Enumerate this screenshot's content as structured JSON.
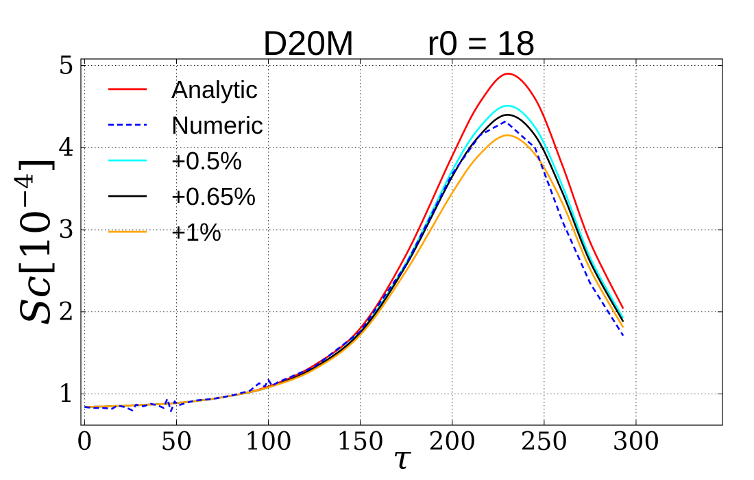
{
  "chart_data": {
    "type": "line",
    "title_left": "D20M",
    "title_right": "r0 = 18",
    "xlabel": "τ",
    "ylabel_prefix": "Sc",
    "ylabel_bracket_open": "[",
    "ylabel_base": "10",
    "ylabel_exp": "−4",
    "ylabel_bracket_close": "]",
    "xlim": [
      -2,
      347
    ],
    "ylim": [
      0.62,
      5.08
    ],
    "xticks": [
      0,
      50,
      100,
      150,
      200,
      250,
      300
    ],
    "xtick_labels": [
      "0",
      "50",
      "100",
      "150",
      "200",
      "250",
      "300"
    ],
    "yticks": [
      1,
      2,
      3,
      4,
      5
    ],
    "ytick_labels": [
      "1",
      "2",
      "3",
      "4",
      "5"
    ],
    "grid": true,
    "legend_position": "top-left",
    "series": [
      {
        "name": "Analytic",
        "color": "#ff0000",
        "style": "solid",
        "x": [
          0,
          25,
          50,
          75,
          100,
          125,
          150,
          175,
          200,
          215,
          230,
          245,
          260,
          275,
          293
        ],
        "y": [
          0.84,
          0.86,
          0.89,
          0.96,
          1.09,
          1.35,
          1.8,
          2.7,
          3.9,
          4.55,
          4.9,
          4.6,
          3.78,
          2.85,
          2.04
        ]
      },
      {
        "name": "Numeric",
        "color": "#0000ff",
        "style": "dashed",
        "x": [
          0,
          5,
          10,
          15,
          18,
          22,
          26,
          28,
          32,
          36,
          40,
          43,
          45,
          47,
          49,
          51,
          55,
          60,
          70,
          80,
          90,
          95,
          98,
          100,
          102,
          105,
          125,
          150,
          175,
          200,
          215,
          229,
          245,
          260,
          275,
          293
        ],
        "y": [
          0.84,
          0.83,
          0.83,
          0.82,
          0.86,
          0.84,
          0.8,
          0.87,
          0.85,
          0.88,
          0.86,
          0.83,
          0.94,
          0.79,
          0.91,
          0.86,
          0.89,
          0.92,
          0.94,
          0.98,
          1.04,
          1.13,
          1.09,
          1.17,
          1.1,
          1.14,
          1.33,
          1.76,
          2.58,
          3.68,
          4.15,
          4.32,
          4.0,
          3.1,
          2.35,
          1.71
        ]
      },
      {
        "name": "+0.5%",
        "color": "#00ffff",
        "style": "solid",
        "x": [
          0,
          25,
          50,
          75,
          100,
          125,
          150,
          175,
          200,
          215,
          230,
          245,
          260,
          275,
          293
        ],
        "y": [
          0.84,
          0.86,
          0.89,
          0.96,
          1.08,
          1.32,
          1.76,
          2.6,
          3.72,
          4.25,
          4.51,
          4.25,
          3.53,
          2.66,
          1.92
        ]
      },
      {
        "name": "+0.65%",
        "color": "#000000",
        "style": "solid",
        "x": [
          0,
          25,
          50,
          75,
          100,
          125,
          150,
          175,
          200,
          215,
          230,
          245,
          260,
          275,
          293
        ],
        "y": [
          0.84,
          0.86,
          0.89,
          0.96,
          1.08,
          1.32,
          1.75,
          2.57,
          3.65,
          4.15,
          4.4,
          4.15,
          3.45,
          2.61,
          1.88
        ]
      },
      {
        "name": "+1%",
        "color": "#ffa500",
        "style": "solid",
        "x": [
          0,
          25,
          50,
          75,
          100,
          125,
          150,
          175,
          200,
          215,
          230,
          245,
          260,
          275,
          293
        ],
        "y": [
          0.84,
          0.86,
          0.89,
          0.96,
          1.08,
          1.3,
          1.72,
          2.5,
          3.45,
          3.92,
          4.15,
          3.92,
          3.32,
          2.52,
          1.81
        ]
      }
    ]
  }
}
